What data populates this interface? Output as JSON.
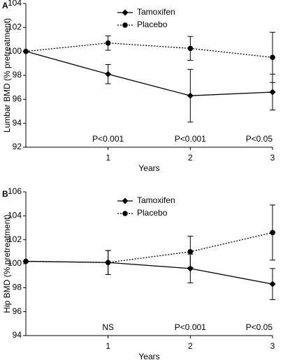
{
  "chart_data": [
    {
      "type": "line",
      "panel_label": "A",
      "ylabel": "Lumbar BMD (% pretreatment)",
      "xlabel": "Years",
      "x": [
        0,
        1,
        2,
        3
      ],
      "xlim": [
        0,
        3
      ],
      "xticks": [
        1,
        2,
        3
      ],
      "ylim": [
        92,
        104
      ],
      "yticks": [
        92,
        94,
        96,
        98,
        100,
        102,
        104
      ],
      "series": [
        {
          "name": "Tamoxifen",
          "color": "#000000",
          "line": "solid",
          "marker": "diamond",
          "values": [
            100,
            98.1,
            96.3,
            96.6
          ],
          "errors": [
            null,
            0.8,
            2.2,
            1.5
          ]
        },
        {
          "name": "Placebo",
          "color": "#000000",
          "line": "dotted",
          "marker": "circle",
          "values": [
            100,
            100.7,
            100.25,
            99.5
          ],
          "errors": [
            null,
            0.6,
            1.0,
            2.1
          ]
        }
      ],
      "annotations": [
        {
          "x": 1,
          "text": "P<0.001"
        },
        {
          "x": 2,
          "text": "P<0.001"
        },
        {
          "x": 3,
          "text": "P<0.05"
        }
      ]
    },
    {
      "type": "line",
      "panel_label": "B",
      "ylabel": "Hip BMD (% pretreatment)",
      "xlabel": "Years",
      "x": [
        0,
        1,
        2,
        3
      ],
      "xlim": [
        0,
        3
      ],
      "xticks": [
        1,
        2,
        3
      ],
      "ylim": [
        94,
        106
      ],
      "yticks": [
        94,
        96,
        98,
        100,
        102,
        104,
        106
      ],
      "series": [
        {
          "name": "Tamoxifen",
          "color": "#000000",
          "line": "solid",
          "marker": "diamond",
          "values": [
            100.2,
            100.1,
            99.6,
            98.3
          ],
          "errors": [
            null,
            1.0,
            1.2,
            1.3
          ]
        },
        {
          "name": "Placebo",
          "color": "#000000",
          "line": "dotted",
          "marker": "circle",
          "values": [
            100.2,
            100.1,
            101.0,
            102.6
          ],
          "errors": [
            null,
            1.0,
            1.3,
            2.3
          ]
        }
      ],
      "annotations": [
        {
          "x": 1,
          "text": "NS"
        },
        {
          "x": 2,
          "text": "P<0.001"
        },
        {
          "x": 3,
          "text": "P<0.05"
        }
      ]
    }
  ]
}
